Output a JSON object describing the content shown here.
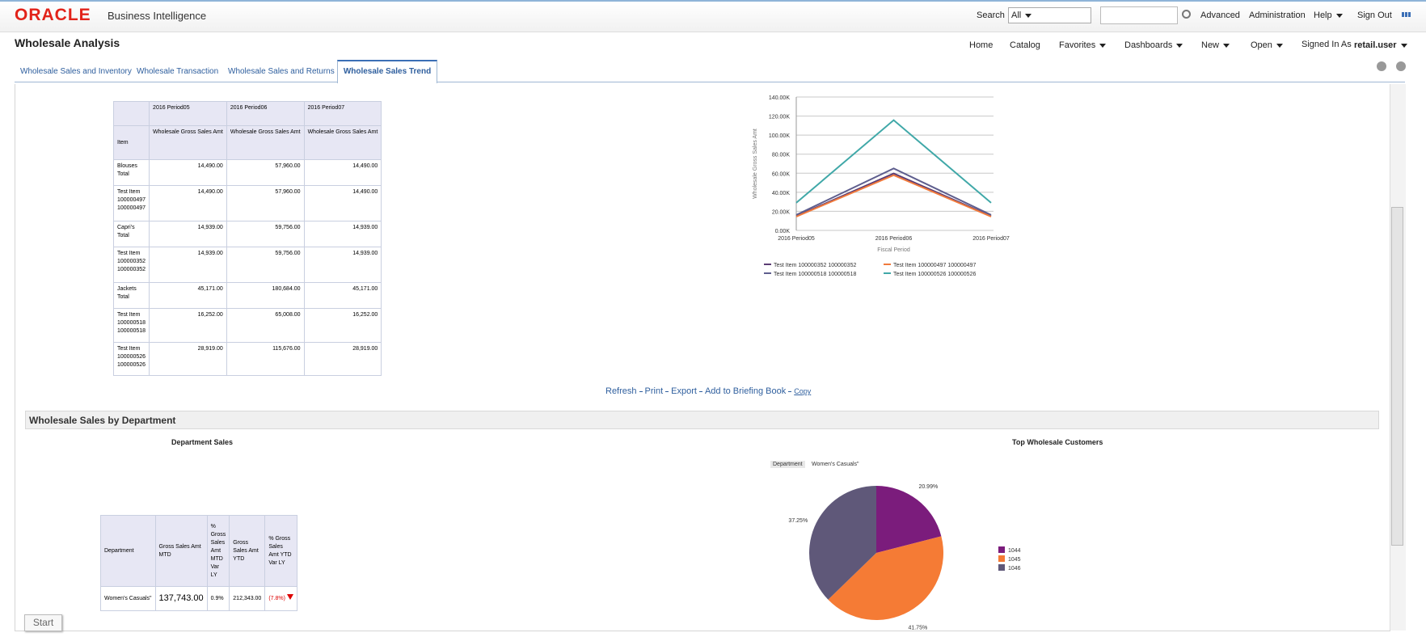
{
  "header": {
    "logo": "ORACLE",
    "product": "Business Intelligence",
    "search_label": "Search",
    "search_scope": "All",
    "links": [
      "Advanced",
      "Administration",
      "Help",
      "Sign Out"
    ]
  },
  "page": {
    "title": "Wholesale Analysis",
    "nav": [
      "Home",
      "Catalog",
      "Favorites",
      "Dashboards",
      "New",
      "Open"
    ],
    "signed_in_label": "Signed In As",
    "user": "retail.user"
  },
  "tabs": [
    "Wholesale Sales and Inventory",
    "Wholesale Transaction",
    "Wholesale Sales and Returns",
    "Wholesale Sales Trend"
  ],
  "pivot_table": {
    "periods": [
      "2016 Period05",
      "2016 Period06",
      "2016 Period07"
    ],
    "measures": [
      "Wholesale Gross Sales Amt",
      "Wholesale Gross Sales Amt",
      "Wholesale Gross Sales Amt"
    ],
    "row_header": "Item",
    "rows": [
      {
        "label": "Blouses Total",
        "values": [
          "14,490.00",
          "57,960.00",
          "14,490.00"
        ]
      },
      {
        "label": "Test Item 100000497 100000497",
        "values": [
          "14,490.00",
          "57,960.00",
          "14,490.00"
        ]
      },
      {
        "label": "Capri's Total",
        "values": [
          "14,939.00",
          "59,756.00",
          "14,939.00"
        ]
      },
      {
        "label": "Test Item 100000352 100000352",
        "values": [
          "14,939.00",
          "59,756.00",
          "14,939.00"
        ]
      },
      {
        "label": "Jackets Total",
        "values": [
          "45,171.00",
          "180,684.00",
          "45,171.00"
        ]
      },
      {
        "label": "Test Item 100000518 100000518",
        "values": [
          "16,252.00",
          "65,008.00",
          "16,252.00"
        ]
      },
      {
        "label": "Test Item 100000526 100000526",
        "values": [
          "28,919.00",
          "115,676.00",
          "28,919.00"
        ]
      }
    ]
  },
  "actions": [
    "Refresh",
    "Print",
    "Export",
    "Add to Briefing Book",
    "Copy"
  ],
  "section_title": "Wholesale Sales by Department",
  "department_sales": {
    "title": "Department Sales",
    "columns": [
      "Department",
      "Gross Sales Amt MTD",
      "% Gross Sales Amt MTD Var LY",
      "Gross Sales Amt YTD",
      "% Gross Sales Amt YTD Var LY"
    ],
    "rows": [
      [
        "Women's Casuals\"",
        "137,743.00",
        "0.9%",
        "212,343.00",
        "(7.8%)"
      ]
    ]
  },
  "start_button": "Start",
  "chart_data": [
    {
      "type": "line",
      "y_label": "Wholesale Gross Sales Amt",
      "x_label": "Fiscal Period",
      "categories": [
        "2016 Period05",
        "2016 Period06",
        "2016 Period07"
      ],
      "series": [
        {
          "name": "Test Item 100000352 100000352",
          "color": "#5b3c74",
          "values": [
            14939,
            59756,
            14939
          ]
        },
        {
          "name": "Test Item 100000497 100000497",
          "color": "#f07a3c",
          "values": [
            14490,
            57960,
            14490
          ]
        },
        {
          "name": "Test Item 100000518 100000518",
          "color": "#5e5e8e",
          "values": [
            16252,
            65008,
            16252
          ]
        },
        {
          "name": "Test Item 100000526 100000526",
          "color": "#40a8a8",
          "values": [
            28919,
            115676,
            28919
          ]
        }
      ],
      "ylim": [
        0,
        140000
      ],
      "yticks": [
        {
          "value": 0,
          "label": "0.00K"
        },
        {
          "value": 20000,
          "label": "20.00K"
        },
        {
          "value": 40000,
          "label": "40.00K"
        },
        {
          "value": 60000,
          "label": "60.00K"
        },
        {
          "value": 80000,
          "label": "80.00K"
        },
        {
          "value": 100000,
          "label": "100.00K"
        },
        {
          "value": 120000,
          "label": "120.00K"
        },
        {
          "value": 140000,
          "label": "140.00K"
        }
      ],
      "grid": true
    },
    {
      "type": "pie",
      "title": "Top Wholesale Customers",
      "prompt_label": "Department",
      "prompt_value": "Women's Casuals\"",
      "categories": [
        "1044",
        "1045",
        "1046"
      ],
      "values": [
        20.99,
        41.75,
        37.25
      ],
      "value_labels": [
        "20.99%",
        "41.75%",
        "37.25%"
      ],
      "colors": [
        "#7b1c7c",
        "#f57b35",
        "#5f5879"
      ]
    }
  ]
}
